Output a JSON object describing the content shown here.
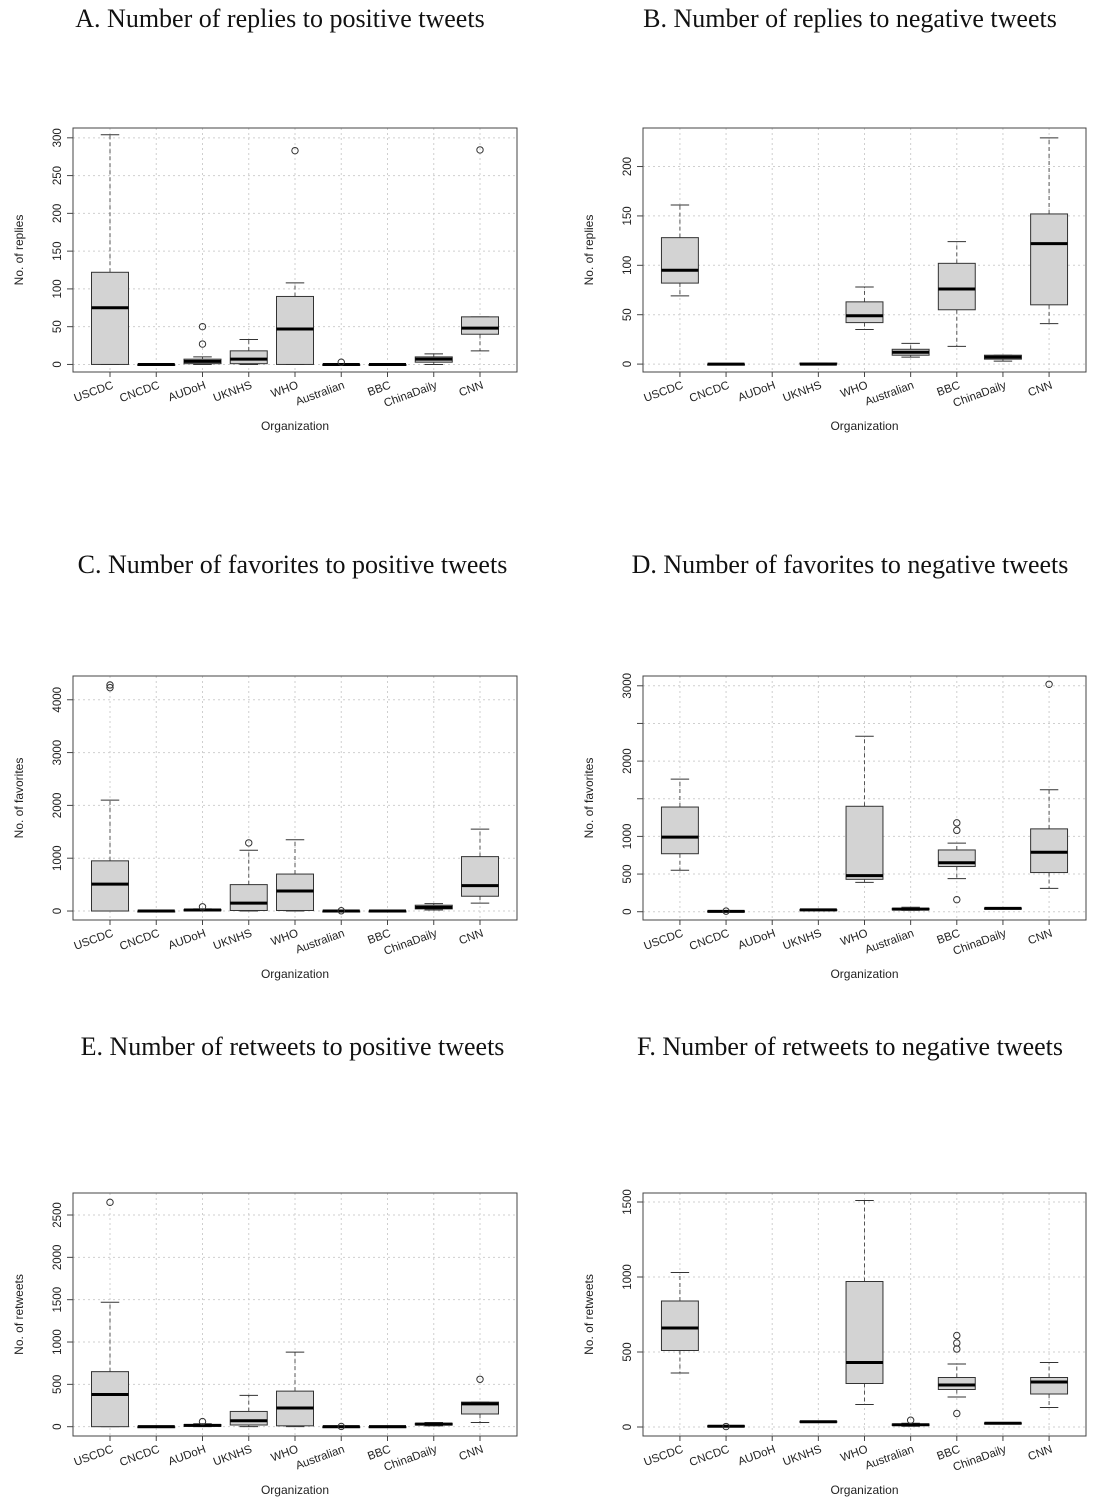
{
  "chart_data": [
    {
      "id": "A",
      "type": "boxplot",
      "title": "A. Number of replies to positive tweets",
      "xlabel": "Organization",
      "ylabel": "No. of replies",
      "ylim": [
        -10,
        313
      ],
      "yticks": [
        0,
        50,
        100,
        150,
        200,
        250,
        300
      ],
      "categories": [
        "USCDC",
        "CNCDC",
        "AUDoH",
        "UKNHS",
        "WHO",
        "Australian",
        "BBC",
        "ChinaDaily",
        "CNN"
      ],
      "boxes": [
        {
          "min": 0,
          "q1": 0,
          "median": 75,
          "q3": 122,
          "max": 304,
          "outliers": []
        },
        {
          "min": 0,
          "q1": 0,
          "median": 0,
          "q3": 0,
          "max": 0,
          "outliers": []
        },
        {
          "min": 0,
          "q1": 1,
          "median": 4,
          "q3": 7,
          "max": 10,
          "outliers": [
            27,
            50
          ]
        },
        {
          "min": 0,
          "q1": 1,
          "median": 7,
          "q3": 18,
          "max": 33,
          "outliers": []
        },
        {
          "min": 0,
          "q1": 0,
          "median": 47,
          "q3": 90,
          "max": 108,
          "outliers": [
            283
          ]
        },
        {
          "min": 0,
          "q1": 0,
          "median": 0,
          "q3": 0,
          "max": 0,
          "outliers": [
            3
          ]
        },
        {
          "min": 0,
          "q1": 0,
          "median": 0,
          "q3": 0,
          "max": 0,
          "outliers": []
        },
        {
          "min": 0,
          "q1": 3,
          "median": 7,
          "q3": 10,
          "max": 14,
          "outliers": []
        },
        {
          "min": 18,
          "q1": 40,
          "median": 48,
          "q3": 63,
          "max": 63,
          "outliers": [
            284
          ]
        }
      ]
    },
    {
      "id": "B",
      "type": "boxplot",
      "title": "B. Number of replies to negative tweets",
      "xlabel": "Organization",
      "ylabel": "No. of replies",
      "ylim": [
        -8,
        239
      ],
      "yticks": [
        0,
        50,
        100,
        150,
        200
      ],
      "categories": [
        "USCDC",
        "CNCDC",
        "AUDoH",
        "UKNHS",
        "WHO",
        "Australian",
        "BBC",
        "ChinaDaily",
        "CNN"
      ],
      "boxes": [
        {
          "min": 69,
          "q1": 82,
          "median": 95,
          "q3": 128,
          "max": 161,
          "outliers": []
        },
        {
          "min": 0,
          "q1": 0,
          "median": 0,
          "q3": 0,
          "max": 0,
          "outliers": []
        },
        null,
        {
          "min": 0,
          "q1": 0,
          "median": 0,
          "q3": 1,
          "max": 1,
          "outliers": []
        },
        {
          "min": 35,
          "q1": 42,
          "median": 49,
          "q3": 63,
          "max": 78,
          "outliers": []
        },
        {
          "min": 7,
          "q1": 9,
          "median": 12,
          "q3": 15,
          "max": 21,
          "outliers": []
        },
        {
          "min": 18,
          "q1": 55,
          "median": 76,
          "q3": 102,
          "max": 124,
          "outliers": []
        },
        {
          "min": 3,
          "q1": 5,
          "median": 7,
          "q3": 9,
          "max": 9,
          "outliers": []
        },
        {
          "min": 41,
          "q1": 60,
          "median": 122,
          "q3": 152,
          "max": 229,
          "outliers": []
        }
      ]
    },
    {
      "id": "C",
      "type": "boxplot",
      "title": "C. Number of favorites to positive tweets",
      "xlabel": "Organization",
      "ylabel": "No. of favorites",
      "ylim": [
        -170,
        4450
      ],
      "yticks": [
        0,
        1000,
        2000,
        3000,
        4000
      ],
      "categories": [
        "USCDC",
        "CNCDC",
        "AUDoH",
        "UKNHS",
        "WHO",
        "Australian",
        "BBC",
        "ChinaDaily",
        "CNN"
      ],
      "boxes": [
        {
          "min": 0,
          "q1": 0,
          "median": 510,
          "q3": 950,
          "max": 2100,
          "outliers": [
            4230,
            4280
          ]
        },
        {
          "min": 0,
          "q1": 0,
          "median": 0,
          "q3": 0,
          "max": 0,
          "outliers": []
        },
        {
          "min": 0,
          "q1": 5,
          "median": 20,
          "q3": 30,
          "max": 40,
          "outliers": [
            80
          ]
        },
        {
          "min": 0,
          "q1": 10,
          "median": 150,
          "q3": 500,
          "max": 1150,
          "outliers": [
            1290
          ]
        },
        {
          "min": 0,
          "q1": 10,
          "median": 380,
          "q3": 700,
          "max": 1350,
          "outliers": []
        },
        {
          "min": 0,
          "q1": 0,
          "median": 0,
          "q3": 0,
          "max": 0,
          "outliers": [
            5
          ]
        },
        {
          "min": 0,
          "q1": 0,
          "median": 0,
          "q3": 0,
          "max": 0,
          "outliers": []
        },
        {
          "min": 20,
          "q1": 40,
          "median": 70,
          "q3": 110,
          "max": 140,
          "outliers": []
        },
        {
          "min": 150,
          "q1": 280,
          "median": 480,
          "q3": 1030,
          "max": 1550,
          "outliers": []
        }
      ]
    },
    {
      "id": "D",
      "type": "boxplot",
      "title": "D. Number of favorites to negative tweets",
      "xlabel": "Organization",
      "ylabel": "No. of favorites",
      "ylim": [
        -110,
        3130
      ],
      "yticks": [
        0,
        500,
        1000,
        1500,
        2000,
        2500,
        3000
      ],
      "ytick_labels": [
        "0",
        "500",
        "1000",
        "",
        "2000",
        "",
        "3000"
      ],
      "categories": [
        "USCDC",
        "CNCDC",
        "AUDoH",
        "UKNHS",
        "WHO",
        "Australian",
        "BBC",
        "ChinaDaily",
        "CNN"
      ],
      "boxes": [
        {
          "min": 550,
          "q1": 770,
          "median": 990,
          "q3": 1390,
          "max": 1760,
          "outliers": []
        },
        {
          "min": 0,
          "q1": 0,
          "median": 5,
          "q3": 10,
          "max": 10,
          "outliers": [
            8
          ]
        },
        null,
        {
          "min": 20,
          "q1": 22,
          "median": 25,
          "q3": 28,
          "max": 30,
          "outliers": []
        },
        {
          "min": 390,
          "q1": 430,
          "median": 480,
          "q3": 1400,
          "max": 2330,
          "outliers": []
        },
        {
          "min": 20,
          "q1": 25,
          "median": 35,
          "q3": 45,
          "max": 60,
          "outliers": []
        },
        {
          "min": 440,
          "q1": 600,
          "median": 650,
          "q3": 820,
          "max": 910,
          "outliers": [
            160,
            1080,
            1180
          ]
        },
        {
          "min": 40,
          "q1": 42,
          "median": 45,
          "q3": 48,
          "max": 50,
          "outliers": []
        },
        {
          "min": 310,
          "q1": 520,
          "median": 790,
          "q3": 1100,
          "max": 1620,
          "outliers": [
            3020
          ]
        }
      ]
    },
    {
      "id": "E",
      "type": "boxplot",
      "title": "E. Number of retweets to positive tweets",
      "xlabel": "Organization",
      "ylabel": "No. of retweets",
      "ylim": [
        -110,
        2760
      ],
      "yticks": [
        0,
        500,
        1000,
        1500,
        2000,
        2500
      ],
      "categories": [
        "USCDC",
        "CNCDC",
        "AUDoH",
        "UKNHS",
        "WHO",
        "Australian",
        "BBC",
        "ChinaDaily",
        "CNN"
      ],
      "boxes": [
        {
          "min": 0,
          "q1": 0,
          "median": 380,
          "q3": 650,
          "max": 1470,
          "outliers": [
            2650
          ]
        },
        {
          "min": 0,
          "q1": 0,
          "median": 0,
          "q3": 0,
          "max": 0,
          "outliers": []
        },
        {
          "min": 0,
          "q1": 5,
          "median": 15,
          "q3": 25,
          "max": 35,
          "outliers": [
            60
          ]
        },
        {
          "min": 0,
          "q1": 20,
          "median": 70,
          "q3": 180,
          "max": 370,
          "outliers": []
        },
        {
          "min": 0,
          "q1": 10,
          "median": 220,
          "q3": 420,
          "max": 880,
          "outliers": []
        },
        {
          "min": 0,
          "q1": 0,
          "median": 0,
          "q3": 0,
          "max": 0,
          "outliers": [
            3
          ]
        },
        {
          "min": 0,
          "q1": 0,
          "median": 0,
          "q3": 0,
          "max": 0,
          "outliers": []
        },
        {
          "min": 10,
          "q1": 20,
          "median": 30,
          "q3": 40,
          "max": 50,
          "outliers": []
        },
        {
          "min": 50,
          "q1": 150,
          "median": 270,
          "q3": 290,
          "max": 290,
          "outliers": [
            560
          ]
        }
      ]
    },
    {
      "id": "F",
      "type": "boxplot",
      "title": "F. Number of retweets to negative tweets",
      "xlabel": "Organization",
      "ylabel": "No. of retweets",
      "ylim": [
        -60,
        1560
      ],
      "yticks": [
        0,
        500,
        1000,
        1500
      ],
      "categories": [
        "USCDC",
        "CNCDC",
        "AUDoH",
        "UKNHS",
        "WHO",
        "Australian",
        "BBC",
        "ChinaDaily",
        "CNN"
      ],
      "boxes": [
        {
          "min": 360,
          "q1": 510,
          "median": 660,
          "q3": 840,
          "max": 1030,
          "outliers": []
        },
        {
          "min": 0,
          "q1": 3,
          "median": 5,
          "q3": 8,
          "max": 10,
          "outliers": [
            3
          ]
        },
        null,
        {
          "min": 30,
          "q1": 32,
          "median": 35,
          "q3": 38,
          "max": 40,
          "outliers": []
        },
        {
          "min": 150,
          "q1": 290,
          "median": 430,
          "q3": 970,
          "max": 1510,
          "outliers": []
        },
        {
          "min": 5,
          "q1": 10,
          "median": 15,
          "q3": 20,
          "max": 25,
          "outliers": [
            45
          ]
        },
        {
          "min": 200,
          "q1": 250,
          "median": 280,
          "q3": 330,
          "max": 420,
          "outliers": [
            90,
            520,
            560,
            610
          ]
        },
        {
          "min": 20,
          "q1": 22,
          "median": 25,
          "q3": 27,
          "max": 30,
          "outliers": []
        },
        {
          "min": 130,
          "q1": 220,
          "median": 300,
          "q3": 330,
          "max": 430,
          "outliers": []
        }
      ]
    }
  ]
}
